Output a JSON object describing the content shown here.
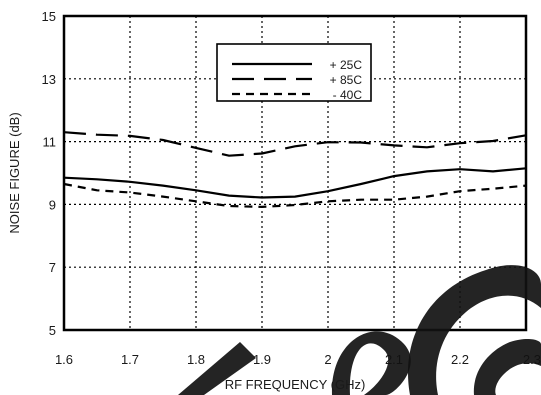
{
  "chart_data": {
    "type": "line",
    "xlabel": "RF FREQUENCY (GHz)",
    "ylabel": "NOISE FIGURE (dB)",
    "xlim": [
      1.6,
      2.3
    ],
    "ylim": [
      5,
      15
    ],
    "xticks": [
      "1.6",
      "1.7",
      "1.8",
      "1.9",
      "2",
      "2.1",
      "2.2",
      "2.3"
    ],
    "yticks": [
      "5",
      "7",
      "9",
      "11",
      "13",
      "15"
    ],
    "grid": true,
    "legend_position": "top-center",
    "series": [
      {
        "name": "+ 25C",
        "dash": "solid",
        "x": [
          1.6,
          1.65,
          1.7,
          1.75,
          1.8,
          1.85,
          1.9,
          1.95,
          2.0,
          2.05,
          2.1,
          2.15,
          2.2,
          2.25,
          2.3
        ],
        "y": [
          9.85,
          9.8,
          9.72,
          9.6,
          9.45,
          9.28,
          9.22,
          9.25,
          9.42,
          9.65,
          9.9,
          10.05,
          10.12,
          10.05,
          10.15
        ]
      },
      {
        "name": "+ 85C",
        "dash": "long-dash",
        "x": [
          1.6,
          1.65,
          1.7,
          1.75,
          1.8,
          1.85,
          1.9,
          1.95,
          2.0,
          2.05,
          2.1,
          2.15,
          2.2,
          2.25,
          2.3
        ],
        "y": [
          11.3,
          11.22,
          11.18,
          11.05,
          10.8,
          10.55,
          10.62,
          10.85,
          10.98,
          10.97,
          10.88,
          10.82,
          10.95,
          11.02,
          11.2
        ]
      },
      {
        "name": "- 40C",
        "dash": "short-dash",
        "x": [
          1.6,
          1.65,
          1.7,
          1.75,
          1.8,
          1.85,
          1.9,
          1.95,
          2.0,
          2.05,
          2.1,
          2.15,
          2.2,
          2.25,
          2.3
        ],
        "y": [
          9.65,
          9.45,
          9.38,
          9.25,
          9.1,
          8.95,
          8.92,
          8.98,
          9.1,
          9.15,
          9.15,
          9.25,
          9.42,
          9.5,
          9.6
        ]
      }
    ]
  },
  "watermark": {
    "color": "#111111"
  }
}
